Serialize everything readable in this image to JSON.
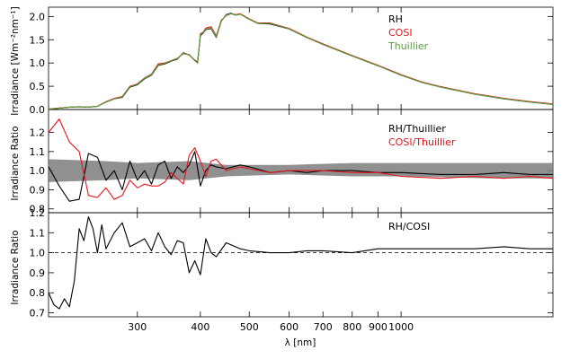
{
  "colors": {
    "rh": "#000000",
    "cosi": "#e8141c",
    "thuillier": "#5a9e3a",
    "band": "#7d7d7d",
    "axis": "#000000"
  },
  "chart_data": [
    {
      "type": "line",
      "panel": "top",
      "xlabel": "",
      "ylabel": "Irradiance [Wm⁻²nm⁻¹]",
      "xlim": [
        200,
        2000
      ],
      "x_scale": "log",
      "ylim": [
        0,
        2.2
      ],
      "yticks": [
        0.0,
        0.5,
        1.0,
        1.5,
        2.0
      ],
      "ytick_labels": [
        "0.0",
        "0.5",
        "1.0",
        "1.5",
        "2.0"
      ],
      "legend": {
        "placement": "top-right",
        "entries": [
          "RH",
          "COSI",
          "Thuillier"
        ]
      },
      "x": [
        200,
        210,
        220,
        230,
        240,
        250,
        260,
        270,
        280,
        290,
        300,
        310,
        320,
        330,
        340,
        350,
        360,
        370,
        380,
        390,
        395,
        400,
        405,
        410,
        420,
        430,
        440,
        450,
        460,
        470,
        480,
        500,
        520,
        550,
        600,
        650,
        700,
        800,
        900,
        1000,
        1100,
        1200,
        1400,
        1600,
        1800,
        2000
      ],
      "series": [
        {
          "name": "RH",
          "color_key": "rh",
          "values": [
            0.01,
            0.03,
            0.05,
            0.06,
            0.05,
            0.07,
            0.16,
            0.23,
            0.26,
            0.48,
            0.53,
            0.66,
            0.74,
            0.95,
            0.98,
            1.04,
            1.08,
            1.22,
            1.17,
            1.06,
            1.02,
            1.59,
            1.64,
            1.72,
            1.74,
            1.55,
            1.9,
            2.04,
            2.07,
            2.03,
            2.05,
            1.94,
            1.85,
            1.84,
            1.73,
            1.55,
            1.4,
            1.15,
            0.94,
            0.74,
            0.58,
            0.48,
            0.33,
            0.23,
            0.16,
            0.11
          ]
        },
        {
          "name": "COSI",
          "color_key": "cosi",
          "values": [
            0.01,
            0.03,
            0.05,
            0.06,
            0.05,
            0.07,
            0.17,
            0.24,
            0.28,
            0.5,
            0.55,
            0.68,
            0.76,
            0.98,
            1.0,
            1.05,
            1.1,
            1.2,
            1.18,
            1.05,
            1.0,
            1.63,
            1.66,
            1.75,
            1.78,
            1.58,
            1.92,
            2.02,
            2.06,
            2.04,
            2.06,
            1.95,
            1.86,
            1.86,
            1.74,
            1.56,
            1.41,
            1.16,
            0.95,
            0.75,
            0.59,
            0.49,
            0.34,
            0.24,
            0.17,
            0.12
          ]
        },
        {
          "name": "Thuillier",
          "color_key": "thuillier",
          "values": [
            0.01,
            0.03,
            0.05,
            0.06,
            0.05,
            0.07,
            0.16,
            0.23,
            0.27,
            0.49,
            0.54,
            0.67,
            0.75,
            0.96,
            0.99,
            1.05,
            1.09,
            1.21,
            1.17,
            1.05,
            1.01,
            1.61,
            1.65,
            1.73,
            1.75,
            1.56,
            1.91,
            2.03,
            2.06,
            2.03,
            2.05,
            1.94,
            1.85,
            1.85,
            1.73,
            1.55,
            1.4,
            1.15,
            0.94,
            0.74,
            0.58,
            0.48,
            0.33,
            0.23,
            0.16,
            0.11
          ]
        }
      ]
    },
    {
      "type": "line",
      "panel": "middle",
      "xlabel": "",
      "ylabel": "Irradiance Ratio",
      "xlim": [
        200,
        2000
      ],
      "x_scale": "log",
      "ylim": [
        0.78,
        1.32
      ],
      "yticks": [
        0.8,
        0.9,
        1.0,
        1.1,
        1.2
      ],
      "ytick_labels": [
        "0.8",
        "0.9",
        "1.0",
        "1.1",
        "1.2"
      ],
      "legend": {
        "placement": "top-right",
        "entries": [
          "RH/Thuillier",
          "COSI/Thuillier"
        ]
      },
      "band": {
        "x": [
          200,
          260,
          300,
          380,
          450,
          600,
          800,
          1000,
          1500,
          2000
        ],
        "lower": [
          0.94,
          0.95,
          0.96,
          0.95,
          0.97,
          0.98,
          0.97,
          0.97,
          0.96,
          0.96
        ],
        "upper": [
          1.06,
          1.05,
          1.04,
          1.05,
          1.03,
          1.03,
          1.04,
          1.04,
          1.04,
          1.04
        ]
      },
      "x": [
        200,
        210,
        220,
        230,
        240,
        250,
        260,
        270,
        280,
        290,
        300,
        310,
        320,
        330,
        340,
        350,
        360,
        370,
        380,
        390,
        400,
        410,
        420,
        430,
        450,
        480,
        500,
        550,
        600,
        650,
        700,
        800,
        900,
        1000,
        1200,
        1400,
        1600,
        1800,
        2000
      ],
      "series": [
        {
          "name": "RH/Thuillier",
          "color_key": "rh",
          "values": [
            1.02,
            0.92,
            0.84,
            0.85,
            1.09,
            1.07,
            0.95,
            1.0,
            0.9,
            1.05,
            0.95,
            1.0,
            0.93,
            1.03,
            1.05,
            0.96,
            1.02,
            0.99,
            1.03,
            1.1,
            0.92,
            1.0,
            1.03,
            1.02,
            1.01,
            1.03,
            1.02,
            0.99,
            1.0,
            0.99,
            1.0,
            1.0,
            0.99,
            0.99,
            0.98,
            0.98,
            0.99,
            0.98,
            0.98
          ]
        },
        {
          "name": "COSI/Thuillier",
          "color_key": "cosi",
          "values": [
            1.2,
            1.27,
            1.15,
            1.1,
            0.87,
            0.86,
            0.91,
            0.85,
            0.87,
            0.95,
            0.91,
            0.93,
            0.92,
            0.92,
            0.94,
            0.99,
            0.96,
            0.93,
            1.08,
            1.12,
            1.05,
            0.97,
            1.05,
            1.06,
            1.0,
            1.02,
            1.01,
            0.99,
            1.0,
            1.0,
            1.0,
            0.99,
            0.99,
            0.97,
            0.96,
            0.97,
            0.96,
            0.97,
            0.96
          ]
        }
      ]
    },
    {
      "type": "line",
      "panel": "bottom",
      "xlabel": "λ [nm]",
      "ylabel": "Irradiance Ratio",
      "xlim": [
        200,
        2000
      ],
      "x_scale": "log",
      "ylim": [
        0.68,
        1.2
      ],
      "yticks": [
        0.7,
        0.8,
        0.9,
        1.0,
        1.1,
        1.2
      ],
      "ytick_labels": [
        "0.7",
        "0.8",
        "0.9",
        "1.0",
        "1.1",
        "1.2"
      ],
      "xticks": [
        300,
        400,
        500,
        600,
        700,
        800,
        900,
        1000
      ],
      "xtick_labels": [
        "300",
        "400",
        "500",
        "600",
        "700",
        "800",
        "900",
        "1000"
      ],
      "reference_line": 1.0,
      "legend": {
        "placement": "top-right",
        "entries": [
          "RH/COSI"
        ]
      },
      "x": [
        200,
        205,
        210,
        215,
        220,
        225,
        230,
        235,
        240,
        245,
        250,
        255,
        260,
        270,
        280,
        290,
        300,
        310,
        320,
        330,
        340,
        350,
        360,
        370,
        380,
        390,
        400,
        410,
        420,
        430,
        450,
        480,
        500,
        550,
        600,
        650,
        700,
        800,
        900,
        1000,
        1200,
        1400,
        1600,
        1800,
        2000
      ],
      "series": [
        {
          "name": "RH/COSI",
          "color_key": "rh",
          "values": [
            0.8,
            0.74,
            0.72,
            0.77,
            0.73,
            0.86,
            1.12,
            1.06,
            1.18,
            1.12,
            1.0,
            1.14,
            1.02,
            1.1,
            1.15,
            1.03,
            1.05,
            1.07,
            1.01,
            1.1,
            1.03,
            0.99,
            1.06,
            1.05,
            0.9,
            0.96,
            0.89,
            1.07,
            1.0,
            0.98,
            1.05,
            1.02,
            1.01,
            1.0,
            1.0,
            1.01,
            1.01,
            1.0,
            1.02,
            1.02,
            1.02,
            1.02,
            1.03,
            1.02,
            1.02
          ]
        }
      ]
    }
  ]
}
